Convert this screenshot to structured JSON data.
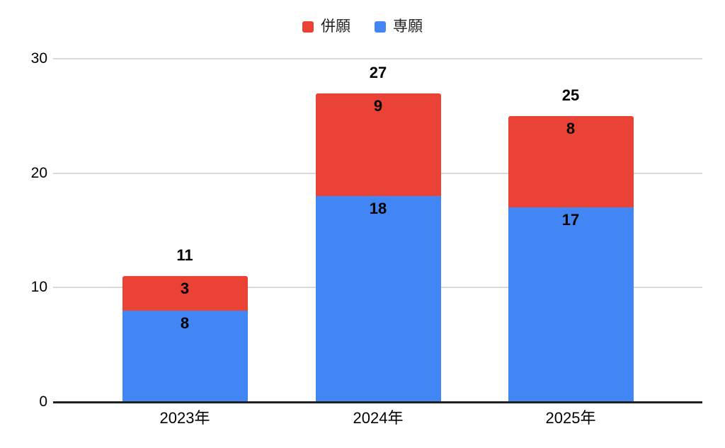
{
  "chart_data": {
    "type": "bar",
    "stacked": true,
    "title": "",
    "categories": [
      "2023年",
      "2024年",
      "2025年"
    ],
    "series": [
      {
        "name": "専願",
        "color": "#4285F4",
        "values": [
          8,
          18,
          17
        ]
      },
      {
        "name": "併願",
        "color": "#EA4335",
        "values": [
          3,
          9,
          8
        ]
      }
    ],
    "totals": [
      11,
      27,
      25
    ],
    "xlabel": "",
    "ylabel": "",
    "ylim": [
      0,
      30
    ],
    "yticks": [
      0,
      10,
      20,
      30
    ],
    "grid": true,
    "legend_position": "top"
  },
  "legend": {
    "items": [
      {
        "label": "併願",
        "color": "#EA4335",
        "swatch": "red-square"
      },
      {
        "label": "専願",
        "color": "#4285F4",
        "swatch": "blue-square"
      }
    ]
  },
  "colors": {
    "series_red": "#EA4335",
    "series_blue": "#4285F4",
    "gridline": "#DADADA",
    "axis_line": "#1F1F1F",
    "label_text": "#000000",
    "background": "#FFFFFF"
  }
}
